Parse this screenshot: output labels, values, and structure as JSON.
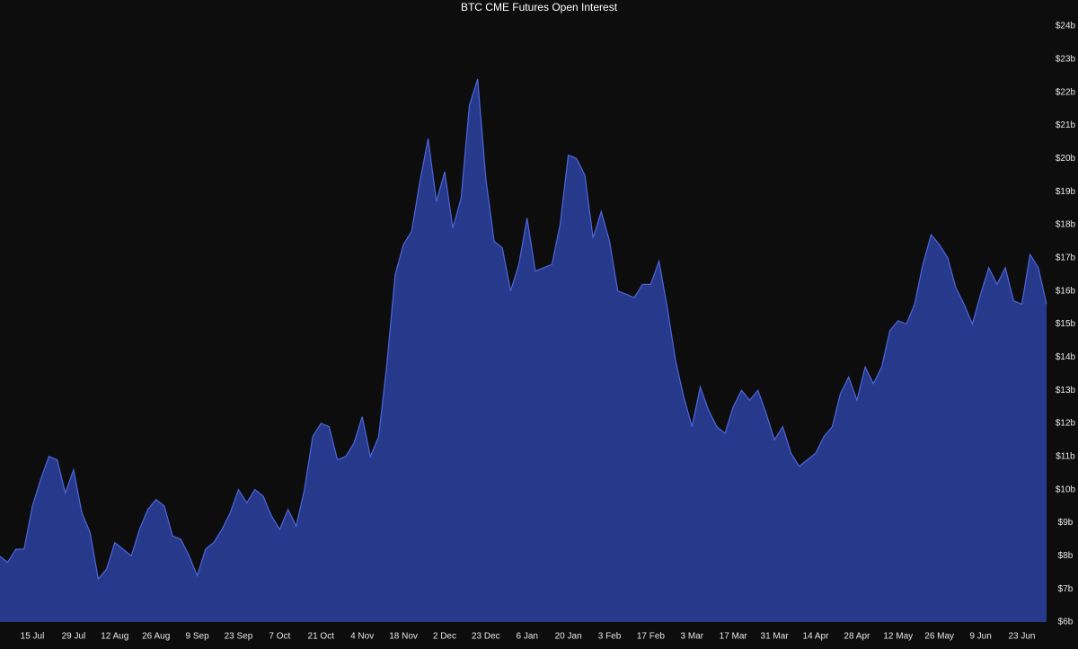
{
  "chart_data": {
    "type": "area",
    "title": "BTC CME Futures Open Interest",
    "categories": [
      null,
      null,
      null,
      null,
      "15 Jul",
      null,
      null,
      null,
      null,
      "29 Jul",
      null,
      null,
      null,
      null,
      "12 Aug",
      null,
      null,
      null,
      null,
      "26 Aug",
      null,
      null,
      null,
      null,
      "9 Sep",
      null,
      null,
      null,
      null,
      "23 Sep",
      null,
      null,
      null,
      null,
      "7 Oct",
      null,
      null,
      null,
      null,
      "21 Oct",
      null,
      null,
      null,
      null,
      "4 Nov",
      null,
      null,
      null,
      null,
      "18 Nov",
      null,
      null,
      null,
      null,
      "2 Dec",
      null,
      null,
      null,
      null,
      "23 Dec",
      null,
      null,
      null,
      null,
      "6 Jan",
      null,
      null,
      null,
      null,
      "20 Jan",
      null,
      null,
      null,
      null,
      "3 Feb",
      null,
      null,
      null,
      null,
      "17 Feb",
      null,
      null,
      null,
      null,
      "3 Mar",
      null,
      null,
      null,
      null,
      "17 Mar",
      null,
      null,
      null,
      null,
      "31 Mar",
      null,
      null,
      null,
      null,
      "14 Apr",
      null,
      null,
      null,
      null,
      "28 Apr",
      null,
      null,
      null,
      null,
      "12 May",
      null,
      null,
      null,
      null,
      "26 May",
      null,
      null,
      null,
      null,
      "9 Jun",
      null,
      null,
      null,
      null,
      "23 Jun",
      null,
      null,
      null
    ],
    "values": [
      8.0,
      7.8,
      8.2,
      8.2,
      9.5,
      10.3,
      11.0,
      10.9,
      9.9,
      10.6,
      9.3,
      8.7,
      7.3,
      7.6,
      8.4,
      8.2,
      8.0,
      8.8,
      9.4,
      9.7,
      9.5,
      8.6,
      8.5,
      8.0,
      7.4,
      8.2,
      8.4,
      8.8,
      9.3,
      10.0,
      9.6,
      10.0,
      9.8,
      9.2,
      8.8,
      9.4,
      8.9,
      10.0,
      11.6,
      12.0,
      11.9,
      10.9,
      11.0,
      11.4,
      12.2,
      11.0,
      11.6,
      13.8,
      16.5,
      17.4,
      17.8,
      19.3,
      20.6,
      18.7,
      19.6,
      17.9,
      18.8,
      21.6,
      22.4,
      19.4,
      17.5,
      17.3,
      16.0,
      16.8,
      18.2,
      16.6,
      16.7,
      16.8,
      18.0,
      20.1,
      20.0,
      19.5,
      17.6,
      18.4,
      17.5,
      16.0,
      15.9,
      15.8,
      16.2,
      16.2,
      16.9,
      15.5,
      13.9,
      12.8,
      11.9,
      13.1,
      12.4,
      11.9,
      11.7,
      12.5,
      13.0,
      12.7,
      13.0,
      12.3,
      11.5,
      11.9,
      11.1,
      10.7,
      10.9,
      11.1,
      11.6,
      11.9,
      12.9,
      13.4,
      12.7,
      13.7,
      13.2,
      13.7,
      14.8,
      15.1,
      15.0,
      15.6,
      16.8,
      17.7,
      17.4,
      17.0,
      16.1,
      15.6,
      15.0,
      15.9,
      16.7,
      16.2,
      16.7,
      15.7,
      15.6,
      17.1,
      16.7,
      15.6
    ],
    "color": "#26398a",
    "line_color": "#4d66dd",
    "ylim": [
      6,
      24
    ],
    "yticks": [
      {
        "value": 6,
        "label": "$6b"
      },
      {
        "value": 7,
        "label": "$7b"
      },
      {
        "value": 8,
        "label": "$8b"
      },
      {
        "value": 9,
        "label": "$9b"
      },
      {
        "value": 10,
        "label": "$10b"
      },
      {
        "value": 11,
        "label": "$11b"
      },
      {
        "value": 12,
        "label": "$12b"
      },
      {
        "value": 13,
        "label": "$13b"
      },
      {
        "value": 14,
        "label": "$14b"
      },
      {
        "value": 15,
        "label": "$15b"
      },
      {
        "value": 16,
        "label": "$16b"
      },
      {
        "value": 17,
        "label": "$17b"
      },
      {
        "value": 18,
        "label": "$18b"
      },
      {
        "value": 19,
        "label": "$19b"
      },
      {
        "value": 20,
        "label": "$20b"
      },
      {
        "value": 21,
        "label": "$21b"
      },
      {
        "value": 22,
        "label": "$22b"
      },
      {
        "value": 23,
        "label": "$23b"
      },
      {
        "value": 24,
        "label": "$24b"
      }
    ],
    "grid": false
  }
}
